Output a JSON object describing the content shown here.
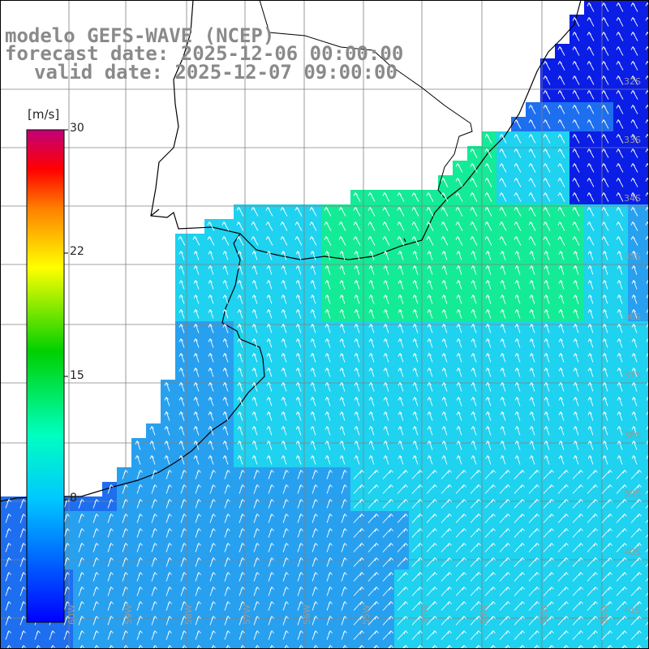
{
  "title": {
    "line1": "modelo GEFS-WAVE (NCEP)",
    "line2": "forecast date: 2025-12-06 00:00:00",
    "line3": "valid date: 2025-12-07 09:00:00"
  },
  "colorbar": {
    "units": "[m/s]",
    "ticks": [
      "30",
      "22",
      "15",
      "8"
    ],
    "colors": [
      "#c0007a",
      "#ff0000",
      "#ff8000",
      "#ffff00",
      "#00d000",
      "#00ffc0",
      "#00c8ff",
      "#0000ff"
    ]
  },
  "lat_labels": [
    "32S",
    "33S",
    "34S",
    "35S",
    "36S",
    "37S",
    "38S",
    "39S",
    "40S",
    "41S"
  ],
  "lon_labels": [
    "60W",
    "59W",
    "58W",
    "57W",
    "56W",
    "55W",
    "54W",
    "53W",
    "52W",
    "51W"
  ],
  "field_colors": {
    "deep_blue": "#0a1ee6",
    "blue": "#1e6ef0",
    "light_blue": "#28a0f0",
    "cyan": "#1ed2f0",
    "aqua_green": "#14eb96",
    "land": "#ffffff",
    "coast_line": "#000000",
    "grid_line": "#808080",
    "arrow": "#ffffff"
  }
}
